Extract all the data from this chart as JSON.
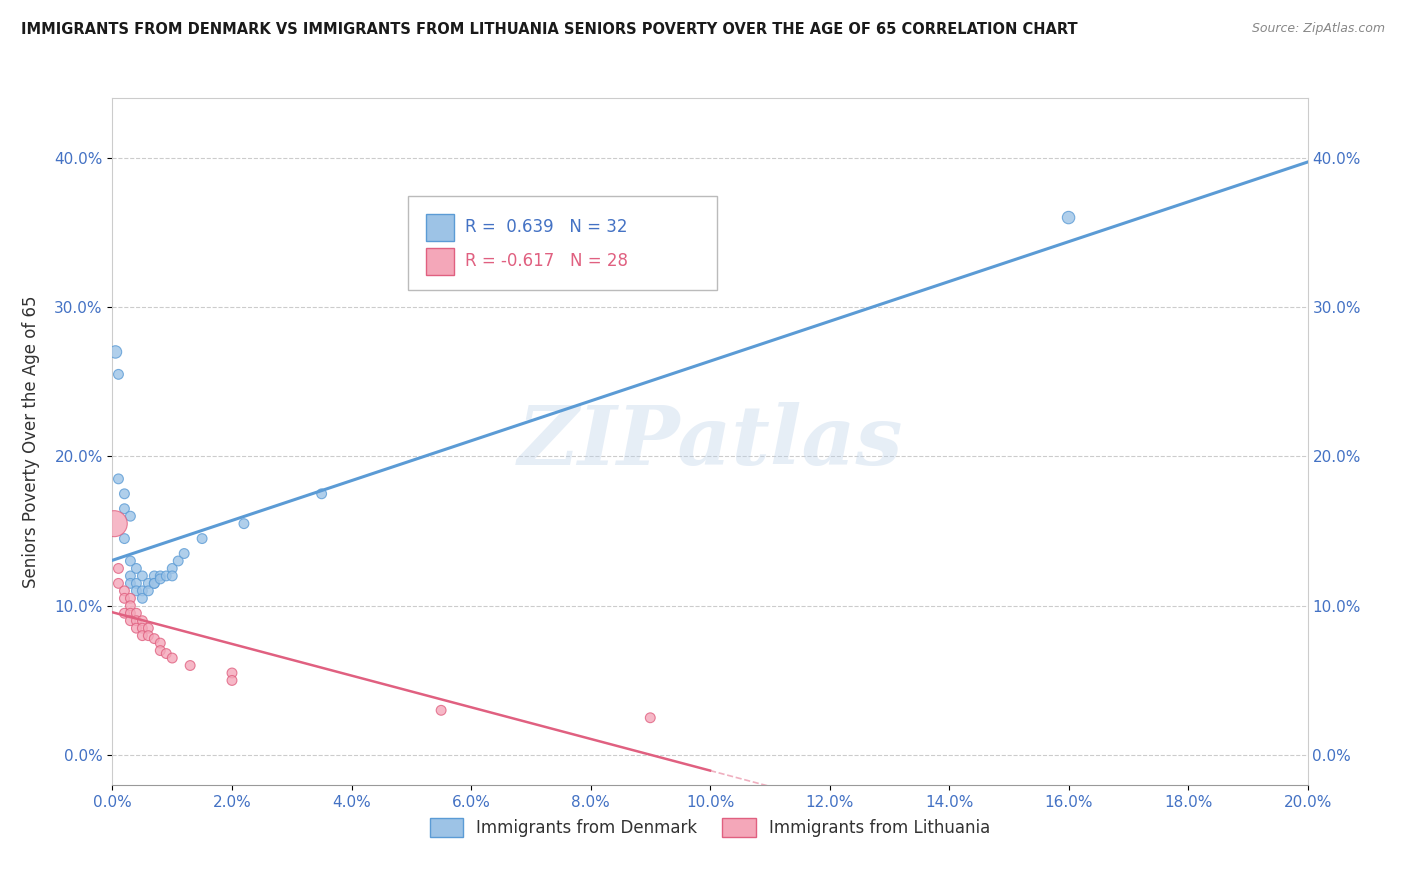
{
  "title": "IMMIGRANTS FROM DENMARK VS IMMIGRANTS FROM LITHUANIA SENIORS POVERTY OVER THE AGE OF 65 CORRELATION CHART",
  "source": "Source: ZipAtlas.com",
  "ylabel": "Seniors Poverty Over the Age of 65",
  "xlim": [
    0.0,
    0.2
  ],
  "ylim": [
    -0.02,
    0.44
  ],
  "xticks": [
    0.0,
    0.02,
    0.04,
    0.06,
    0.08,
    0.1,
    0.12,
    0.14,
    0.16,
    0.18,
    0.2
  ],
  "yticks": [
    0.0,
    0.1,
    0.2,
    0.3,
    0.4
  ],
  "denmark_color": "#5b9bd5",
  "denmark_color_fill": "#9dc3e6",
  "lithuania_color": "#e06080",
  "lithuania_color_fill": "#f4a7b9",
  "denmark_R": 0.639,
  "denmark_N": 32,
  "lithuania_R": -0.617,
  "lithuania_N": 28,
  "watermark": "ZIPatlas",
  "denmark_scatter": [
    [
      0.0005,
      0.27
    ],
    [
      0.001,
      0.255
    ],
    [
      0.001,
      0.185
    ],
    [
      0.002,
      0.175
    ],
    [
      0.002,
      0.165
    ],
    [
      0.002,
      0.145
    ],
    [
      0.003,
      0.16
    ],
    [
      0.003,
      0.13
    ],
    [
      0.003,
      0.12
    ],
    [
      0.003,
      0.115
    ],
    [
      0.004,
      0.125
    ],
    [
      0.004,
      0.115
    ],
    [
      0.004,
      0.11
    ],
    [
      0.005,
      0.12
    ],
    [
      0.005,
      0.11
    ],
    [
      0.005,
      0.105
    ],
    [
      0.006,
      0.115
    ],
    [
      0.006,
      0.11
    ],
    [
      0.007,
      0.12
    ],
    [
      0.007,
      0.115
    ],
    [
      0.007,
      0.115
    ],
    [
      0.008,
      0.12
    ],
    [
      0.008,
      0.118
    ],
    [
      0.009,
      0.12
    ],
    [
      0.01,
      0.125
    ],
    [
      0.01,
      0.12
    ],
    [
      0.011,
      0.13
    ],
    [
      0.012,
      0.135
    ],
    [
      0.015,
      0.145
    ],
    [
      0.022,
      0.155
    ],
    [
      0.035,
      0.175
    ],
    [
      0.16,
      0.36
    ]
  ],
  "denmark_sizes": [
    80,
    50,
    50,
    50,
    50,
    50,
    50,
    50,
    50,
    50,
    50,
    50,
    50,
    50,
    50,
    50,
    50,
    50,
    50,
    50,
    50,
    50,
    50,
    50,
    50,
    50,
    50,
    50,
    50,
    50,
    50,
    80
  ],
  "lithuania_scatter": [
    [
      0.0003,
      0.155
    ],
    [
      0.001,
      0.125
    ],
    [
      0.001,
      0.115
    ],
    [
      0.002,
      0.11
    ],
    [
      0.002,
      0.105
    ],
    [
      0.002,
      0.095
    ],
    [
      0.003,
      0.105
    ],
    [
      0.003,
      0.1
    ],
    [
      0.003,
      0.095
    ],
    [
      0.003,
      0.09
    ],
    [
      0.004,
      0.095
    ],
    [
      0.004,
      0.09
    ],
    [
      0.004,
      0.085
    ],
    [
      0.005,
      0.09
    ],
    [
      0.005,
      0.085
    ],
    [
      0.005,
      0.08
    ],
    [
      0.006,
      0.085
    ],
    [
      0.006,
      0.08
    ],
    [
      0.007,
      0.078
    ],
    [
      0.008,
      0.075
    ],
    [
      0.008,
      0.07
    ],
    [
      0.009,
      0.068
    ],
    [
      0.01,
      0.065
    ],
    [
      0.013,
      0.06
    ],
    [
      0.02,
      0.055
    ],
    [
      0.02,
      0.05
    ],
    [
      0.055,
      0.03
    ],
    [
      0.09,
      0.025
    ]
  ],
  "lithuania_sizes": [
    350,
    50,
    50,
    50,
    50,
    50,
    50,
    50,
    50,
    50,
    50,
    50,
    50,
    50,
    50,
    50,
    50,
    50,
    50,
    50,
    50,
    50,
    50,
    50,
    50,
    50,
    50,
    50
  ]
}
